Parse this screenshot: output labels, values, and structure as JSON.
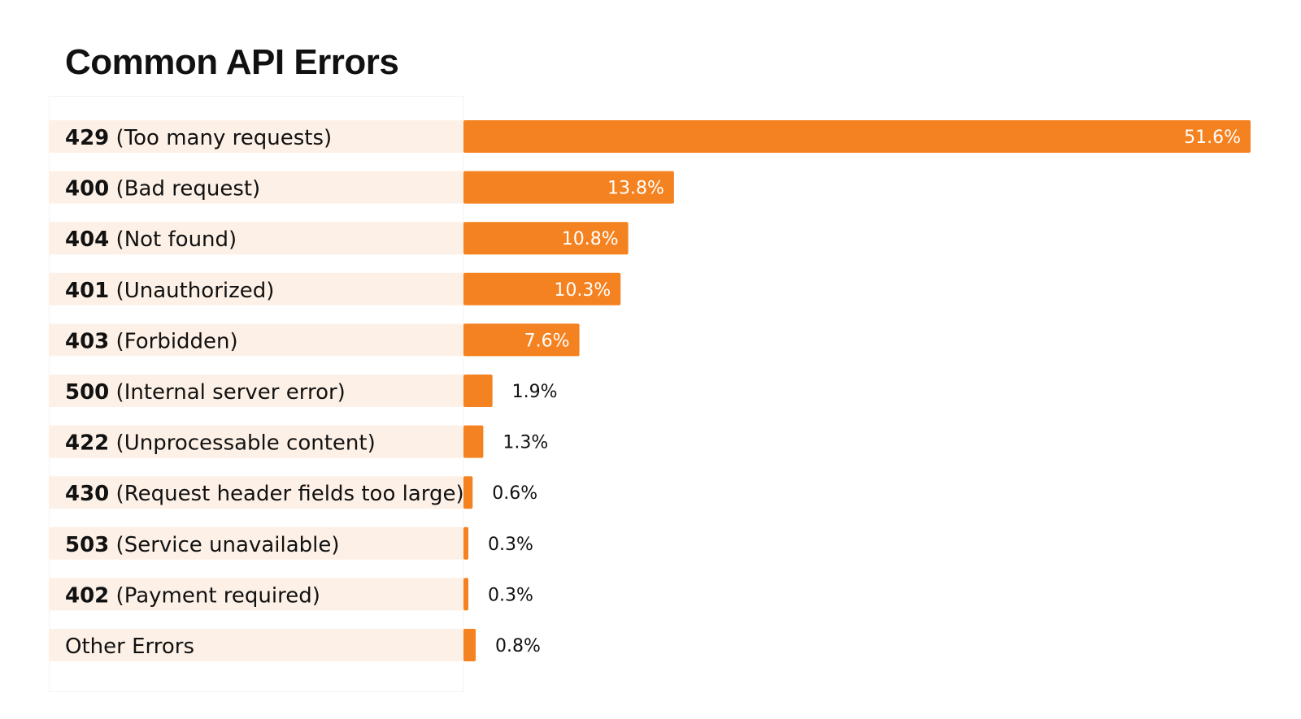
{
  "chart_data": {
    "type": "bar",
    "orientation": "horizontal",
    "title": "Common API Errors",
    "xlabel": "",
    "ylabel": "",
    "value_format": "percent",
    "xlim": [
      0,
      51.6
    ],
    "grid": false,
    "legend": "none",
    "categories": [
      {
        "code": "429",
        "description": "(Too many requests)"
      },
      {
        "code": "400",
        "description": "(Bad request)"
      },
      {
        "code": "404",
        "description": "(Not found)"
      },
      {
        "code": "401",
        "description": "(Unauthorized)"
      },
      {
        "code": "403",
        "description": "(Forbidden)"
      },
      {
        "code": "500",
        "description": "(Internal server error)"
      },
      {
        "code": "422",
        "description": "(Unprocessable content)"
      },
      {
        "code": "430",
        "description": "(Request header fields too large)"
      },
      {
        "code": "503",
        "description": "(Service unavailable)"
      },
      {
        "code": "402",
        "description": "(Payment required)"
      },
      {
        "code": "",
        "description": "Other Errors"
      }
    ],
    "values": [
      51.6,
      13.8,
      10.8,
      10.3,
      7.6,
      1.9,
      1.3,
      0.6,
      0.3,
      0.3,
      0.8
    ],
    "value_labels": [
      "51.6%",
      "13.8%",
      "10.8%",
      "10.3%",
      "7.6%",
      "1.9%",
      "1.3%",
      "0.6%",
      "0.3%",
      "0.3%",
      "0.8%"
    ],
    "colors": {
      "bar": "#f58220",
      "label_background": "#fdf1e7",
      "text": "#111111",
      "inside_label": "#ffffff"
    }
  }
}
